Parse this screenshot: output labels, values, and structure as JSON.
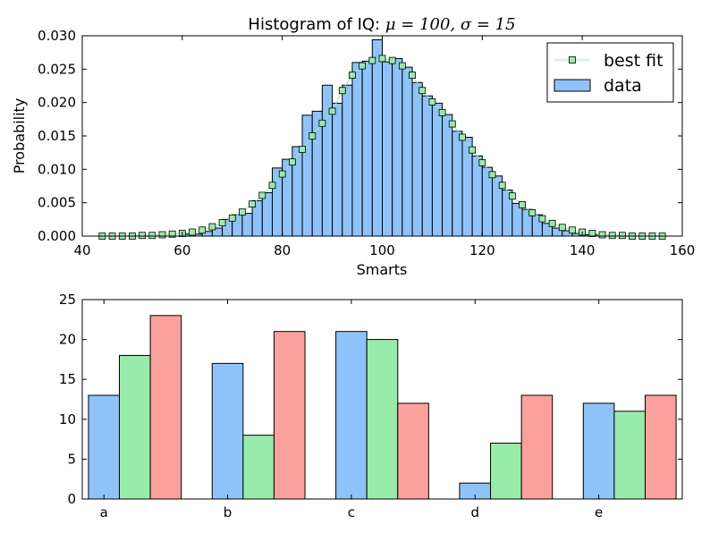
{
  "chart_data": [
    {
      "type": "bar",
      "title": "Histogram of IQ: ",
      "title_math": "μ = 100, σ = 15",
      "xlabel": "Smarts",
      "ylabel": "Probability",
      "xlim": [
        40,
        160
      ],
      "ylim": [
        0,
        0.03
      ],
      "xticks": [
        "40",
        "60",
        "80",
        "100",
        "120",
        "140",
        "160"
      ],
      "yticks": [
        "0.000",
        "0.005",
        "0.010",
        "0.015",
        "0.020",
        "0.025",
        "0.030"
      ],
      "legend_position": "top-right",
      "colors": {
        "bars": "#8ec3fa",
        "fit": "#98eca9"
      },
      "legend": [
        {
          "label": "best fit",
          "marker": "square-line",
          "color": "#98eca9"
        },
        {
          "label": "data",
          "marker": "patch",
          "color": "#8ec3fa"
        }
      ],
      "histogram": {
        "bins": [
          {
            "x0": 60,
            "x1": 64,
            "y": 0.0003
          },
          {
            "x0": 64,
            "x1": 66,
            "y": 0.0007
          },
          {
            "x0": 66,
            "x1": 68,
            "y": 0.0012
          },
          {
            "x0": 68,
            "x1": 70,
            "y": 0.0025
          },
          {
            "x0": 70,
            "x1": 72,
            "y": 0.0032
          },
          {
            "x0": 72,
            "x1": 74,
            "y": 0.0034
          },
          {
            "x0": 74,
            "x1": 76,
            "y": 0.0053
          },
          {
            "x0": 76,
            "x1": 78,
            "y": 0.0065
          },
          {
            "x0": 78,
            "x1": 80,
            "y": 0.0102
          },
          {
            "x0": 80,
            "x1": 82,
            "y": 0.0115
          },
          {
            "x0": 82,
            "x1": 84,
            "y": 0.0134
          },
          {
            "x0": 84,
            "x1": 86,
            "y": 0.0181
          },
          {
            "x0": 86,
            "x1": 88,
            "y": 0.0187
          },
          {
            "x0": 88,
            "x1": 90,
            "y": 0.0226
          },
          {
            "x0": 90,
            "x1": 92,
            "y": 0.0199
          },
          {
            "x0": 92,
            "x1": 94,
            "y": 0.0226
          },
          {
            "x0": 94,
            "x1": 96,
            "y": 0.026
          },
          {
            "x0": 96,
            "x1": 98,
            "y": 0.0262
          },
          {
            "x0": 98,
            "x1": 100,
            "y": 0.0294
          },
          {
            "x0": 100,
            "x1": 102,
            "y": 0.0261
          },
          {
            "x0": 102,
            "x1": 104,
            "y": 0.0266
          },
          {
            "x0": 104,
            "x1": 106,
            "y": 0.0253
          },
          {
            "x0": 106,
            "x1": 108,
            "y": 0.023
          },
          {
            "x0": 108,
            "x1": 110,
            "y": 0.021
          },
          {
            "x0": 110,
            "x1": 112,
            "y": 0.0199
          },
          {
            "x0": 112,
            "x1": 114,
            "y": 0.0182
          },
          {
            "x0": 114,
            "x1": 116,
            "y": 0.0157
          },
          {
            "x0": 116,
            "x1": 118,
            "y": 0.0148
          },
          {
            "x0": 118,
            "x1": 120,
            "y": 0.012
          },
          {
            "x0": 120,
            "x1": 122,
            "y": 0.0103
          },
          {
            "x0": 122,
            "x1": 124,
            "y": 0.009
          },
          {
            "x0": 124,
            "x1": 126,
            "y": 0.0069
          },
          {
            "x0": 126,
            "x1": 128,
            "y": 0.0049
          },
          {
            "x0": 128,
            "x1": 130,
            "y": 0.004
          },
          {
            "x0": 130,
            "x1": 132,
            "y": 0.0032
          },
          {
            "x0": 132,
            "x1": 134,
            "y": 0.0019
          },
          {
            "x0": 134,
            "x1": 136,
            "y": 0.0012
          },
          {
            "x0": 136,
            "x1": 138,
            "y": 0.0008
          },
          {
            "x0": 138,
            "x1": 140,
            "y": 0.0004
          },
          {
            "x0": 140,
            "x1": 143,
            "y": 0.0002
          }
        ]
      },
      "best_fit": {
        "x": [
          44,
          46,
          48,
          50,
          52,
          54,
          56,
          58,
          60,
          62,
          64,
          66,
          68,
          70,
          72,
          74,
          76,
          78,
          80,
          82,
          84,
          86,
          88,
          90,
          92,
          94,
          96,
          98,
          100,
          102,
          104,
          106,
          108,
          110,
          112,
          114,
          116,
          118,
          120,
          122,
          124,
          126,
          128,
          130,
          132,
          134,
          136,
          138,
          140,
          142,
          144,
          146,
          148,
          150,
          152,
          154,
          156
        ],
        "y": [
          0.0,
          0.0,
          0.0,
          0.0,
          0.0001,
          0.0001,
          0.0002,
          0.0003,
          0.0004,
          0.0006,
          0.0009,
          0.0014,
          0.002,
          0.0027,
          0.0036,
          0.0048,
          0.0061,
          0.0076,
          0.0093,
          0.0111,
          0.013,
          0.015,
          0.0169,
          0.0187,
          0.0218,
          0.0241,
          0.0255,
          0.0263,
          0.0266,
          0.0263,
          0.0255,
          0.0241,
          0.0218,
          0.0201,
          0.0185,
          0.0168,
          0.0148,
          0.0129,
          0.011,
          0.0092,
          0.0076,
          0.006,
          0.0047,
          0.0035,
          0.0026,
          0.0019,
          0.0013,
          0.0009,
          0.0006,
          0.0004,
          0.0002,
          0.0001,
          0.0001,
          0.0,
          0.0,
          0.0,
          0.0
        ]
      }
    },
    {
      "type": "bar",
      "categories": [
        "a",
        "b",
        "c",
        "d",
        "e"
      ],
      "ylim": [
        0,
        25
      ],
      "yticks": [
        "0",
        "5",
        "10",
        "15",
        "20",
        "25"
      ],
      "colors": [
        "#8ec3fa",
        "#98eca9",
        "#fba19d"
      ],
      "series": [
        {
          "values": [
            13,
            17,
            21,
            2,
            12
          ]
        },
        {
          "values": [
            18,
            8,
            20,
            7,
            11
          ]
        },
        {
          "values": [
            23,
            21,
            12,
            13,
            13
          ]
        }
      ]
    }
  ]
}
